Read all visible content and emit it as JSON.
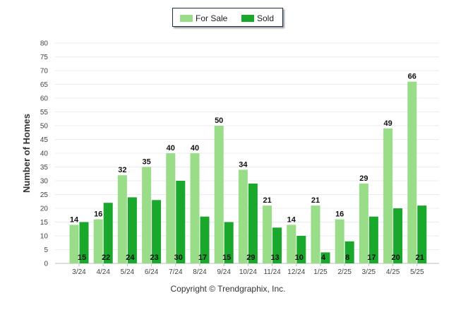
{
  "chart_data": {
    "type": "bar",
    "categories": [
      "3/24",
      "4/24",
      "5/24",
      "6/24",
      "7/24",
      "8/24",
      "9/24",
      "10/24",
      "11/24",
      "12/24",
      "1/25",
      "2/25",
      "3/25",
      "4/25",
      "5/25"
    ],
    "series": [
      {
        "name": "For Sale",
        "color": "#99dd88",
        "values": [
          14,
          16,
          32,
          35,
          40,
          40,
          50,
          34,
          21,
          14,
          21,
          16,
          29,
          49,
          66
        ]
      },
      {
        "name": "Sold",
        "color": "#1aa82c",
        "values": [
          15,
          22,
          24,
          23,
          30,
          17,
          15,
          29,
          13,
          10,
          4,
          8,
          17,
          20,
          21
        ]
      }
    ],
    "ylabel": "Number of Homes",
    "xlabel": "",
    "ylim": [
      0,
      80
    ],
    "yticks": [
      0,
      5,
      10,
      15,
      20,
      25,
      30,
      35,
      40,
      45,
      50,
      55,
      60,
      65,
      70,
      75,
      80
    ],
    "grid": true,
    "legend_position": "top-center"
  },
  "legend": {
    "items": [
      {
        "label": "For Sale",
        "color": "#99dd88"
      },
      {
        "label": "Sold",
        "color": "#1aa82c"
      }
    ]
  },
  "footer": {
    "copyright": "Copyright © Trendgraphix, Inc."
  }
}
